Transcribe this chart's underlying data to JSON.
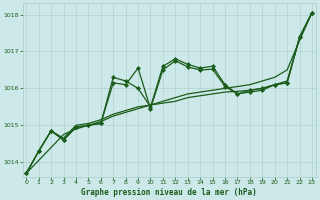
{
  "x": [
    0,
    1,
    2,
    3,
    4,
    5,
    6,
    7,
    8,
    9,
    10,
    11,
    12,
    13,
    14,
    15,
    16,
    17,
    18,
    19,
    20,
    21,
    22,
    23
  ],
  "line_straight": [
    1013.7,
    1014.05,
    1014.4,
    1014.75,
    1014.9,
    1015.0,
    1015.1,
    1015.25,
    1015.35,
    1015.45,
    1015.55,
    1015.65,
    1015.75,
    1015.85,
    1015.9,
    1015.95,
    1016.0,
    1016.05,
    1016.1,
    1016.2,
    1016.3,
    1016.5,
    1017.3,
    1018.05
  ],
  "line_smooth1": [
    1013.7,
    1014.3,
    1014.85,
    1014.65,
    1015.0,
    1015.05,
    1015.15,
    1015.3,
    1015.4,
    1015.5,
    1015.55,
    1015.6,
    1015.65,
    1015.75,
    1015.8,
    1015.85,
    1015.9,
    1015.92,
    1015.95,
    1016.0,
    1016.1,
    1016.2,
    1017.35,
    1018.05
  ],
  "line_spiky1": [
    1013.7,
    1014.3,
    1014.85,
    1014.6,
    1014.95,
    1015.0,
    1015.05,
    1016.3,
    1016.2,
    1016.0,
    1015.5,
    1016.6,
    1016.8,
    1016.65,
    1016.55,
    1016.6,
    1016.1,
    1015.85,
    1015.95,
    1016.0,
    1016.1,
    1016.15,
    1017.4,
    1018.05
  ],
  "line_spiky2": [
    1013.7,
    1014.3,
    1014.85,
    1014.6,
    1014.95,
    1015.0,
    1015.05,
    1016.15,
    1016.1,
    1016.55,
    1015.45,
    1016.5,
    1016.75,
    1016.58,
    1016.5,
    1016.52,
    1016.05,
    1015.85,
    1015.9,
    1015.95,
    1016.1,
    1016.15,
    1017.38,
    1018.05
  ],
  "ylim": [
    1013.6,
    1018.3
  ],
  "xlim": [
    -0.3,
    23.3
  ],
  "yticks": [
    1014,
    1015,
    1016,
    1017,
    1018
  ],
  "xticks": [
    0,
    1,
    2,
    3,
    4,
    5,
    6,
    7,
    8,
    9,
    10,
    11,
    12,
    13,
    14,
    15,
    16,
    17,
    18,
    19,
    20,
    21,
    22,
    23
  ],
  "xlabel": "Graphe pression niveau de la mer (hPa)",
  "bg_color": "#cce8e8",
  "line_color": "#1a5c1a",
  "grid_color": "#aacccc",
  "tick_color": "#1a5c1a",
  "label_color": "#1a5c1a",
  "marker": "D",
  "markersize": 2.2,
  "linewidth": 0.9
}
